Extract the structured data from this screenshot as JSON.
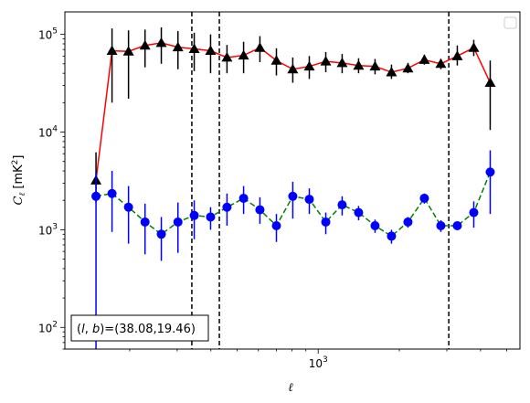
{
  "chart_data": {
    "type": "scatter",
    "xscale": "log",
    "yscale": "log",
    "xlim": [
      115,
      5600
    ],
    "ylim": [
      60,
      170000
    ],
    "xlabel": "ℓ",
    "ylabel": "C_ℓ  [mK²]",
    "ylabel_parts": {
      "symbol": "C",
      "sub": "ℓ",
      "unit_open": " [mK",
      "unit_sup": "2",
      "unit_close": "]"
    },
    "x_tick_labels": [
      {
        "value": 1000,
        "label": "10",
        "exp": "3"
      }
    ],
    "y_tick_labels": [
      {
        "value": 100,
        "label": "10",
        "exp": "2"
      },
      {
        "value": 1000,
        "label": "10",
        "exp": "3"
      },
      {
        "value": 10000,
        "label": "10",
        "exp": "4"
      },
      {
        "value": 100000,
        "label": "10",
        "exp": "5"
      }
    ],
    "annotation": "(l, b)=(38.08,19.46)",
    "annotation_parts": {
      "open": "(",
      "l": "l",
      "comma": ", ",
      "b": "b",
      "rest": ")=(38.08,19.46)"
    },
    "vlines": [
      340,
      430,
      3050
    ],
    "legend": "top-right, empty",
    "series": [
      {
        "marker": "triangle",
        "color": "#000000",
        "line_color": "#ff0000",
        "line_style": "solid",
        "points": [
          {
            "x": 150,
            "y": 3200,
            "lo": 1900,
            "hi": 6200
          },
          {
            "x": 172,
            "y": 68000,
            "lo": 20000,
            "hi": 115000
          },
          {
            "x": 198,
            "y": 67000,
            "lo": 22000,
            "hi": 110000
          },
          {
            "x": 228,
            "y": 77000,
            "lo": 46000,
            "hi": 112000
          },
          {
            "x": 262,
            "y": 82000,
            "lo": 50000,
            "hi": 118000
          },
          {
            "x": 302,
            "y": 74000,
            "lo": 44000,
            "hi": 108000
          },
          {
            "x": 347,
            "y": 71000,
            "lo": 42000,
            "hi": 104000
          },
          {
            "x": 399,
            "y": 68000,
            "lo": 40000,
            "hi": 100000
          },
          {
            "x": 459,
            "y": 58000,
            "lo": 40000,
            "hi": 78000
          },
          {
            "x": 529,
            "y": 61000,
            "lo": 40000,
            "hi": 84000
          },
          {
            "x": 608,
            "y": 73000,
            "lo": 52000,
            "hi": 96000
          },
          {
            "x": 700,
            "y": 54000,
            "lo": 38000,
            "hi": 72000
          },
          {
            "x": 805,
            "y": 44000,
            "lo": 32000,
            "hi": 58000
          },
          {
            "x": 927,
            "y": 47000,
            "lo": 35000,
            "hi": 60000
          },
          {
            "x": 1067,
            "y": 53000,
            "lo": 41000,
            "hi": 66000
          },
          {
            "x": 1227,
            "y": 51000,
            "lo": 40000,
            "hi": 63000
          },
          {
            "x": 1412,
            "y": 48000,
            "lo": 40000,
            "hi": 57000
          },
          {
            "x": 1625,
            "y": 47000,
            "lo": 39000,
            "hi": 56000
          },
          {
            "x": 1870,
            "y": 41000,
            "lo": 35000,
            "hi": 49000
          },
          {
            "x": 2152,
            "y": 45000,
            "lo": 40000,
            "hi": 51000
          },
          {
            "x": 2476,
            "y": 55000,
            "lo": 49000,
            "hi": 62000
          },
          {
            "x": 2850,
            "y": 50000,
            "lo": 44000,
            "hi": 56000
          },
          {
            "x": 3280,
            "y": 60000,
            "lo": 48000,
            "hi": 77000
          },
          {
            "x": 3775,
            "y": 73000,
            "lo": 60000,
            "hi": 88000
          },
          {
            "x": 4344,
            "y": 32000,
            "lo": 10500,
            "hi": 54000
          }
        ]
      },
      {
        "marker": "circle",
        "color": "#0000ff",
        "line_color": "#008000",
        "line_style": "dashed",
        "points": [
          {
            "x": 150,
            "y": 2200,
            "lo": 60,
            "hi": 3800
          },
          {
            "x": 172,
            "y": 2350,
            "lo": 950,
            "hi": 4000
          },
          {
            "x": 198,
            "y": 1700,
            "lo": 720,
            "hi": 2800
          },
          {
            "x": 228,
            "y": 1200,
            "lo": 560,
            "hi": 1850
          },
          {
            "x": 262,
            "y": 900,
            "lo": 480,
            "hi": 1350
          },
          {
            "x": 302,
            "y": 1200,
            "lo": 580,
            "hi": 1900
          },
          {
            "x": 347,
            "y": 1400,
            "lo": 800,
            "hi": 2000
          },
          {
            "x": 399,
            "y": 1350,
            "lo": 1000,
            "hi": 1700
          },
          {
            "x": 459,
            "y": 1700,
            "lo": 1100,
            "hi": 2350
          },
          {
            "x": 529,
            "y": 2100,
            "lo": 1450,
            "hi": 2800
          },
          {
            "x": 608,
            "y": 1600,
            "lo": 1150,
            "hi": 2150
          },
          {
            "x": 700,
            "y": 1100,
            "lo": 750,
            "hi": 1450
          },
          {
            "x": 805,
            "y": 2200,
            "lo": 1300,
            "hi": 3100
          },
          {
            "x": 927,
            "y": 2050,
            "lo": 1450,
            "hi": 2650
          },
          {
            "x": 1067,
            "y": 1200,
            "lo": 900,
            "hi": 1500
          },
          {
            "x": 1227,
            "y": 1800,
            "lo": 1400,
            "hi": 2200
          },
          {
            "x": 1412,
            "y": 1500,
            "lo": 1250,
            "hi": 1750
          },
          {
            "x": 1625,
            "y": 1100,
            "lo": 930,
            "hi": 1270
          },
          {
            "x": 1870,
            "y": 860,
            "lo": 720,
            "hi": 1000
          },
          {
            "x": 2152,
            "y": 1200,
            "lo": 1050,
            "hi": 1350
          },
          {
            "x": 2476,
            "y": 2100,
            "lo": 1850,
            "hi": 2350
          },
          {
            "x": 2850,
            "y": 1100,
            "lo": 950,
            "hi": 1250
          },
          {
            "x": 3280,
            "y": 1100,
            "lo": 1000,
            "hi": 1200
          },
          {
            "x": 3775,
            "y": 1500,
            "lo": 1050,
            "hi": 1950
          },
          {
            "x": 4344,
            "y": 3900,
            "lo": 1450,
            "hi": 6500
          }
        ]
      }
    ]
  }
}
